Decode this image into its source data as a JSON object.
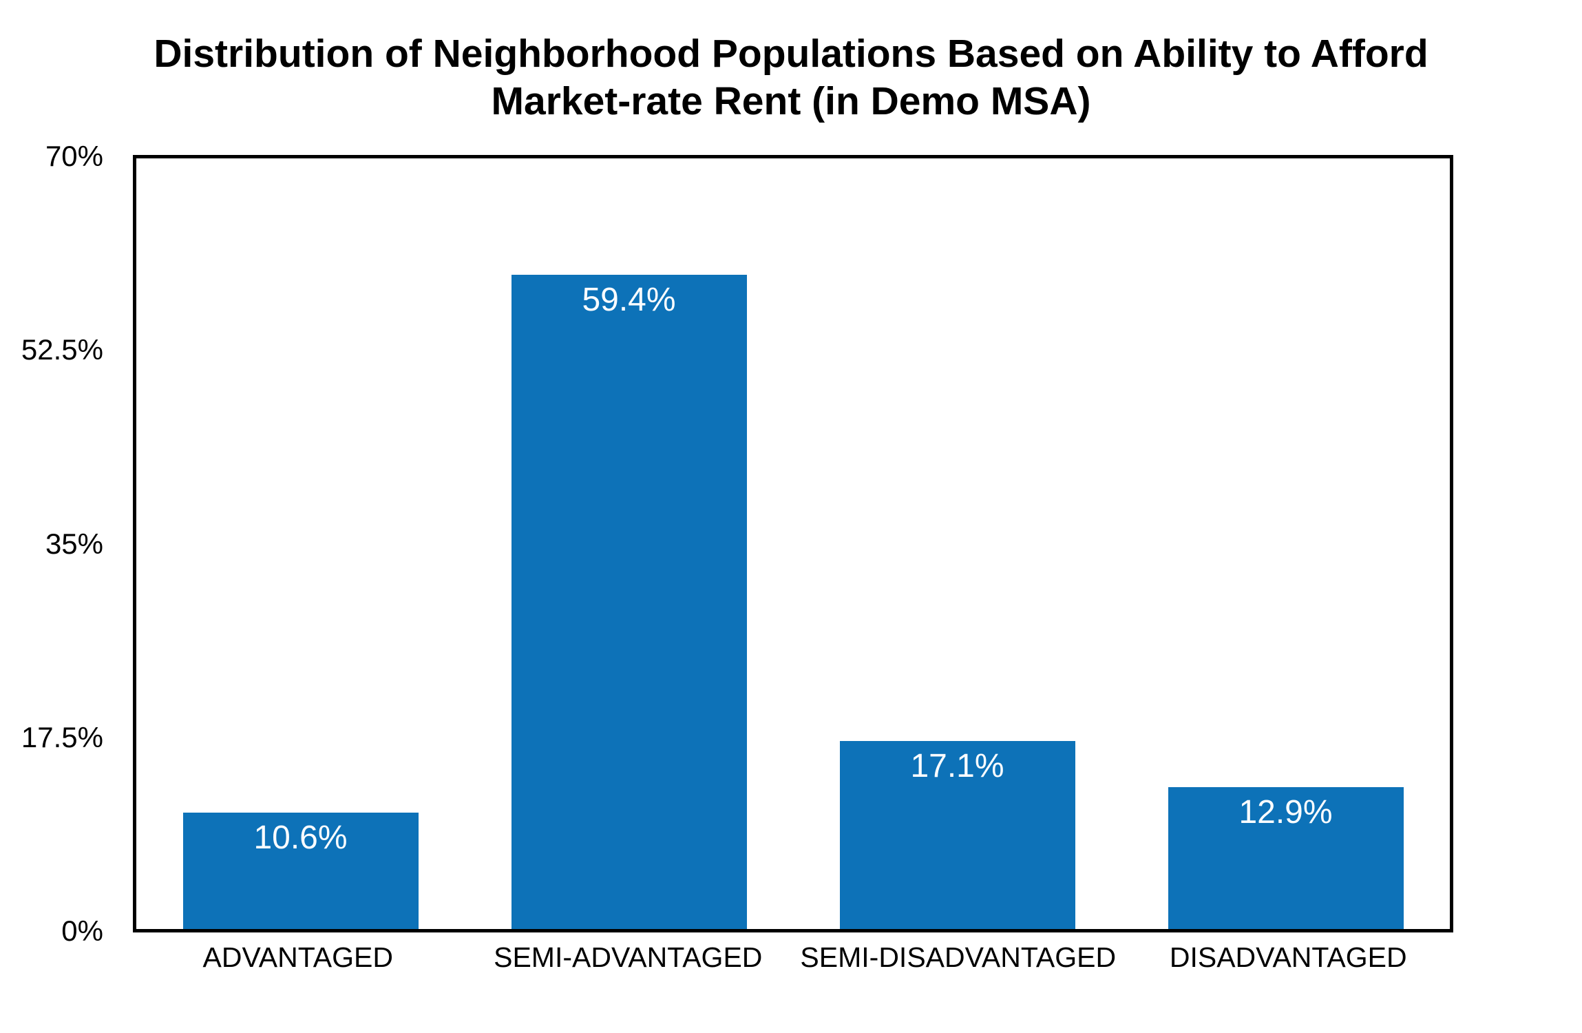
{
  "chart_data": {
    "type": "bar",
    "title": "Distribution of Neighborhood Populations Based on Ability to Afford Market-rate Rent (in Demo MSA)",
    "title_lines": [
      "Distribution of Neighborhood Populations Based on Ability to Afford",
      "Market-rate Rent (in Demo MSA)"
    ],
    "categories": [
      "ADVANTAGED",
      "SEMI-ADVANTAGED",
      "SEMI-DISADVANTAGED",
      "DISADVANTAGED"
    ],
    "values": [
      10.6,
      59.4,
      17.1,
      12.9
    ],
    "value_labels": [
      "10.6%",
      "59.4%",
      "17.1%",
      "12.9%"
    ],
    "ylim": [
      0,
      70
    ],
    "yticks": [
      0,
      17.5,
      35,
      52.5,
      70
    ],
    "ytick_labels_top_to_bottom": [
      "70%",
      "52.5%",
      "35%",
      "17.5%",
      "0%"
    ],
    "xlabel": "",
    "ylabel": "",
    "grid": false,
    "legend": "none",
    "bar_color": "#0d72b8",
    "value_label_color": "#fbfdff",
    "axis_color": "#000000",
    "background_color": "#ffffff"
  }
}
